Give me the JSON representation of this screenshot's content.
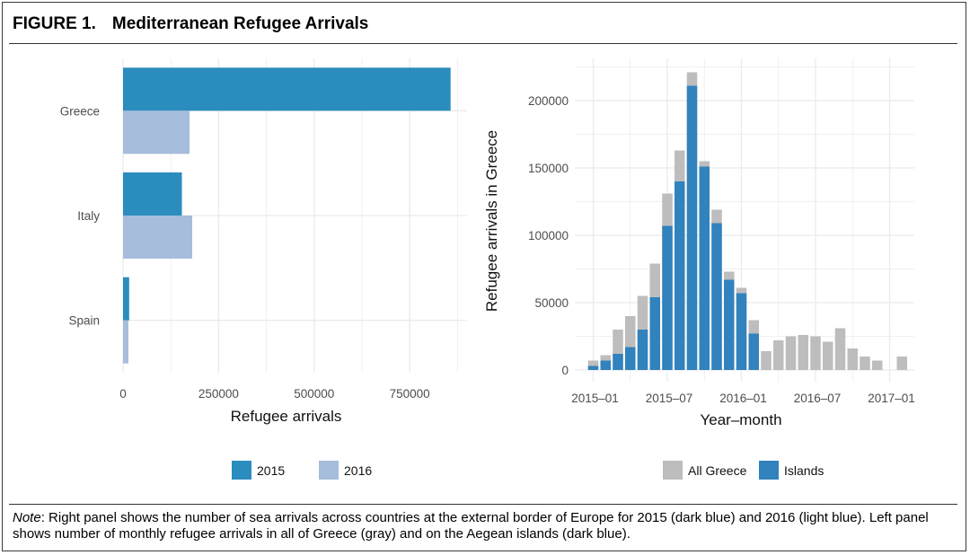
{
  "figure": {
    "label": "FIGURE 1.",
    "title": "Mediterranean Refugee Arrivals",
    "note_prefix": "Note",
    "note_text": ": Right panel shows the number of sea arrivals across countries at the external border of Europe for 2015 (dark blue) and 2016 (light blue). Left panel shows number of monthly refugee arrivals in all of Greece (gray) and on the Aegean islands (dark blue)."
  },
  "colors": {
    "series_2015": "#2b8cbe",
    "series_2016": "#a6bddb",
    "all_greece": "#bdbdbd",
    "islands": "#3182bd",
    "grid": "#ebebeb"
  },
  "chart_data": [
    {
      "type": "bar",
      "orientation": "horizontal",
      "categories": [
        "Greece",
        "Italy",
        "Spain"
      ],
      "series": [
        {
          "name": "2015",
          "values": [
            857000,
            154000,
            16000
          ]
        },
        {
          "name": "2016",
          "values": [
            174000,
            181000,
            14000
          ]
        }
      ],
      "xlabel": "Refugee arrivals",
      "xlim": [
        0,
        900000
      ],
      "xticks": [
        0,
        250000,
        500000,
        750000
      ],
      "xtick_labels": [
        "0",
        "250000",
        "500000",
        "750000"
      ],
      "grid": true,
      "legend_position": "bottom"
    },
    {
      "type": "bar",
      "x": [
        "2015-01",
        "2015-02",
        "2015-03",
        "2015-04",
        "2015-05",
        "2015-06",
        "2015-07",
        "2015-08",
        "2015-09",
        "2015-10",
        "2015-11",
        "2015-12",
        "2016-01",
        "2016-02",
        "2016-03",
        "2016-04",
        "2016-05",
        "2016-06",
        "2016-07",
        "2016-08",
        "2016-09",
        "2016-10",
        "2016-11",
        "2016-12",
        "2017-01",
        "2017-02"
      ],
      "series": [
        {
          "name": "All Greece",
          "values": [
            7000,
            11000,
            30000,
            40000,
            55000,
            79000,
            131000,
            163000,
            221000,
            155000,
            119000,
            73000,
            61000,
            37000,
            14000,
            22000,
            25000,
            26000,
            25000,
            21000,
            31000,
            16000,
            10000,
            7000,
            0,
            10000
          ]
        },
        {
          "name": "Islands",
          "values": [
            3000,
            7000,
            12000,
            17000,
            30000,
            54000,
            107000,
            140000,
            211000,
            151000,
            109000,
            67000,
            57000,
            27000,
            0,
            0,
            0,
            0,
            0,
            0,
            0,
            0,
            0,
            0,
            0,
            0
          ]
        }
      ],
      "xlabel": "Year–month",
      "ylabel": "Refugee arrivals in Greece",
      "ylim": [
        0,
        235000
      ],
      "yticks": [
        0,
        50000,
        100000,
        150000,
        200000
      ],
      "ytick_labels": [
        "0",
        "50000",
        "100000",
        "150000",
        "200000"
      ],
      "xtick_labels": [
        "2015–01",
        "2015–07",
        "2016–01",
        "2016–07",
        "2017–01"
      ],
      "xtick_positions": [
        "2015-01",
        "2015-07",
        "2016-01",
        "2016-07",
        "2017-01"
      ],
      "grid": true,
      "legend_position": "bottom"
    }
  ]
}
